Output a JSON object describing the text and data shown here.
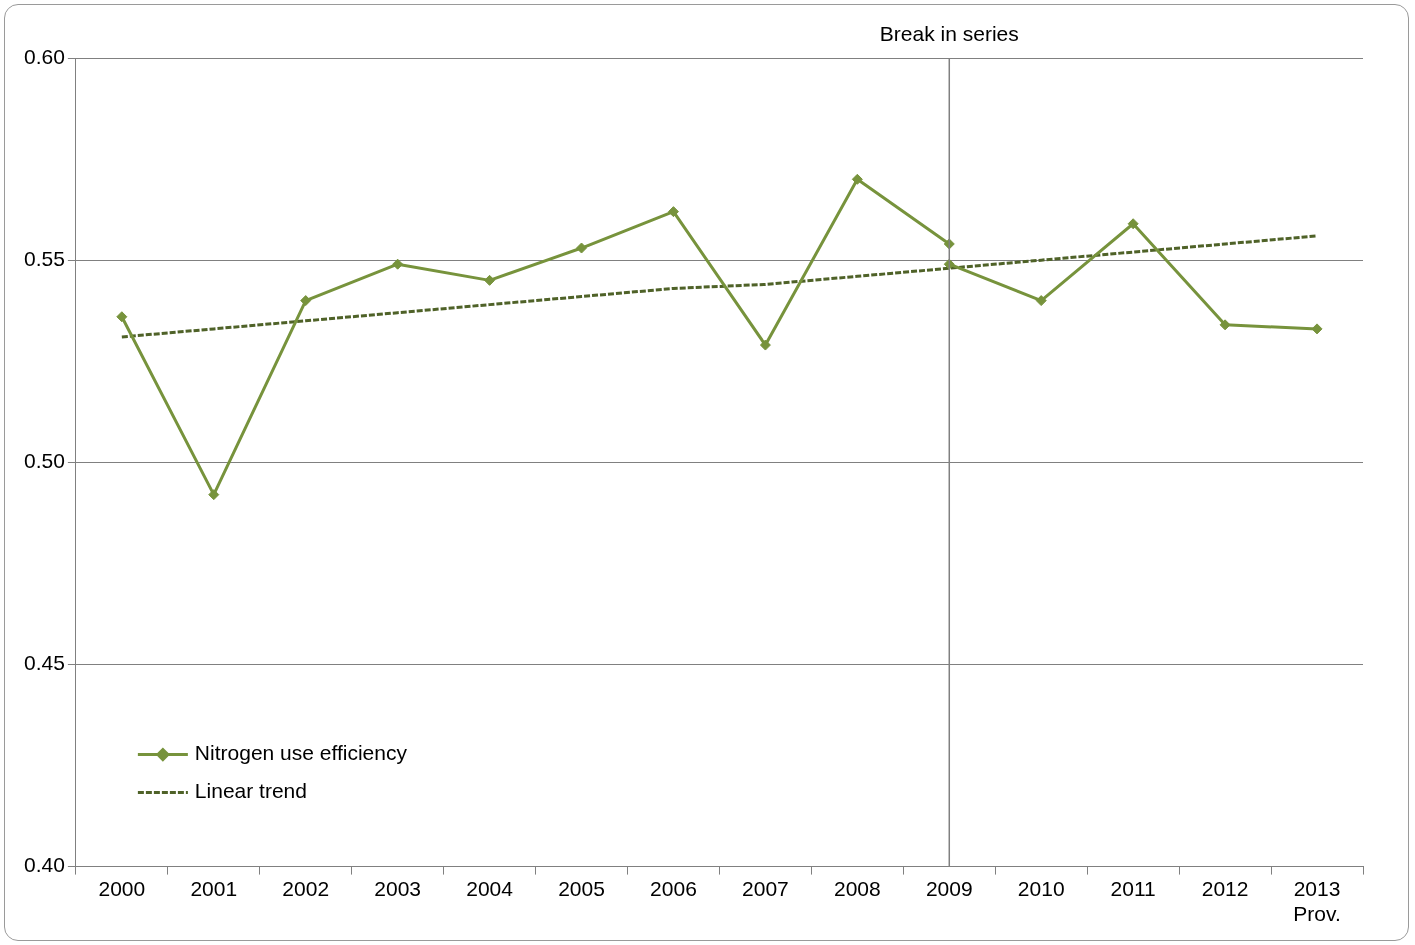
{
  "chart_data": {
    "type": "line",
    "categories": [
      "2000",
      "2001",
      "2002",
      "2003",
      "2004",
      "2005",
      "2006",
      "2007",
      "2008",
      "2009",
      "2010",
      "2011",
      "2012",
      "2013\nProv."
    ],
    "series": [
      {
        "name": "Nitrogen use efficiency",
        "color": "#77933c",
        "values": [
          0.536,
          0.492,
          0.54,
          0.549,
          0.545,
          0.553,
          0.562,
          0.529,
          0.57,
          0.554,
          null,
          null,
          null,
          null
        ]
      },
      {
        "color": "#77933c",
        "values": [
          null,
          null,
          null,
          null,
          null,
          null,
          null,
          null,
          null,
          0.549,
          0.54,
          0.559,
          0.534,
          0.533
        ]
      },
      {
        "name": "Linear trend",
        "type": "line",
        "color": "#4f6228",
        "line_style": "dashed",
        "marker": "none",
        "values": [
          0.531,
          0.533,
          0.535,
          0.537,
          0.539,
          0.541,
          0.543,
          0.544,
          0.546,
          0.548,
          0.55,
          0.552,
          0.554,
          0.556
        ]
      }
    ],
    "ylim": [
      0.4,
      0.6
    ],
    "yticks": [
      {
        "value": 0.4,
        "label": "0.40"
      },
      {
        "value": 0.45,
        "label": "0.45"
      },
      {
        "value": 0.5,
        "label": "0.50"
      },
      {
        "value": 0.55,
        "label": "0.55"
      },
      {
        "value": 0.6,
        "label": "0.60"
      }
    ],
    "grid": "y",
    "legend": "bottom left",
    "marker": "diamond",
    "line_style": "solid",
    "ref_lines": [
      {
        "axis": "x",
        "value": "2009",
        "label": "Break in series",
        "color": "#808080"
      }
    ]
  }
}
